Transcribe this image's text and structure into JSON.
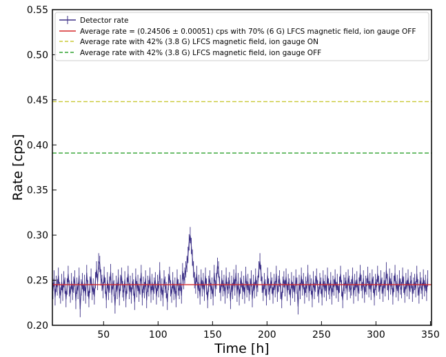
{
  "chart_data": {
    "type": "line",
    "xlabel": "Time [h]",
    "ylabel": "Rate [cps]",
    "xlim": [
      3,
      351
    ],
    "ylim": [
      0.2,
      0.55
    ],
    "xticks": [
      50,
      100,
      150,
      200,
      250,
      300,
      350
    ],
    "xtick_labels": [
      "50",
      "100",
      "150",
      "200",
      "250",
      "300",
      "350"
    ],
    "yticks": [
      0.2,
      0.25,
      0.3,
      0.35,
      0.4,
      0.45,
      0.5,
      0.55
    ],
    "ytick_labels": [
      "0.20",
      "0.25",
      "0.30",
      "0.35",
      "0.40",
      "0.45",
      "0.50",
      "0.55"
    ],
    "grid": false,
    "legend_position": "top-left",
    "colors": {
      "detector": "#3b2f86",
      "avg_70": "#d62728",
      "avg_42_on": "#c8c832",
      "avg_42_off": "#2ca02c"
    },
    "series": [
      {
        "name": "Detector rate",
        "kind": "errorbar",
        "x_start": 3.5,
        "x_step": 1.0,
        "error": 0.009,
        "values": [
          0.238,
          0.252,
          0.231,
          0.246,
          0.242,
          0.255,
          0.239,
          0.233,
          0.248,
          0.236,
          0.251,
          0.244,
          0.229,
          0.243,
          0.257,
          0.241,
          0.234,
          0.249,
          0.237,
          0.245,
          0.252,
          0.227,
          0.244,
          0.238,
          0.255,
          0.218,
          0.242,
          0.249,
          0.236,
          0.247,
          0.233,
          0.258,
          0.241,
          0.229,
          0.245,
          0.254,
          0.237,
          0.243,
          0.232,
          0.25,
          0.262,
          0.248,
          0.271,
          0.268,
          0.253,
          0.247,
          0.239,
          0.256,
          0.244,
          0.228,
          0.25,
          0.237,
          0.245,
          0.259,
          0.234,
          0.249,
          0.241,
          0.222,
          0.246,
          0.238,
          0.253,
          0.231,
          0.247,
          0.255,
          0.24,
          0.236,
          0.251,
          0.229,
          0.244,
          0.257,
          0.238,
          0.246,
          0.233,
          0.249,
          0.242,
          0.226,
          0.254,
          0.24,
          0.247,
          0.235,
          0.243,
          0.258,
          0.231,
          0.245,
          0.239,
          0.252,
          0.228,
          0.246,
          0.241,
          0.255,
          0.234,
          0.248,
          0.237,
          0.244,
          0.25,
          0.232,
          0.247,
          0.24,
          0.261,
          0.236,
          0.243,
          0.23,
          0.252,
          0.245,
          0.239,
          0.226,
          0.248,
          0.256,
          0.241,
          0.234,
          0.25,
          0.237,
          0.244,
          0.229,
          0.253,
          0.242,
          0.238,
          0.247,
          0.233,
          0.26,
          0.249,
          0.255,
          0.262,
          0.268,
          0.278,
          0.292,
          0.3,
          0.288,
          0.275,
          0.262,
          0.25,
          0.244,
          0.257,
          0.239,
          0.247,
          0.232,
          0.253,
          0.241,
          0.249,
          0.236,
          0.255,
          0.243,
          0.228,
          0.246,
          0.252,
          0.238,
          0.244,
          0.231,
          0.258,
          0.241,
          0.249,
          0.266,
          0.262,
          0.245,
          0.236,
          0.252,
          0.241,
          0.247,
          0.233,
          0.255,
          0.239,
          0.244,
          0.25,
          0.227,
          0.246,
          0.238,
          0.253,
          0.242,
          0.258,
          0.235,
          0.249,
          0.231,
          0.244,
          0.251,
          0.238,
          0.246,
          0.233,
          0.256,
          0.24,
          0.248,
          0.236,
          0.243,
          0.252,
          0.229,
          0.247,
          0.239,
          0.254,
          0.241,
          0.246,
          0.262,
          0.271,
          0.258,
          0.245,
          0.236,
          0.249,
          0.242,
          0.231,
          0.255,
          0.243,
          0.237,
          0.25,
          0.244,
          0.233,
          0.248,
          0.24,
          0.257,
          0.235,
          0.246,
          0.252,
          0.238,
          0.228,
          0.245,
          0.251,
          0.241,
          0.254,
          0.236,
          0.248,
          0.243,
          0.231,
          0.25,
          0.239,
          0.246,
          0.235,
          0.253,
          0.244,
          0.221,
          0.247,
          0.238,
          0.255,
          0.242,
          0.249,
          0.233,
          0.245,
          0.24,
          0.258,
          0.236,
          0.247,
          0.243,
          0.229,
          0.251,
          0.238,
          0.246,
          0.254,
          0.241,
          0.234,
          0.249,
          0.244,
          0.231,
          0.252,
          0.24,
          0.247,
          0.236,
          0.255,
          0.243,
          0.238,
          0.25,
          0.232,
          0.246,
          0.242,
          0.253,
          0.239,
          0.248,
          0.235,
          0.245,
          0.257,
          0.241,
          0.228,
          0.247,
          0.244,
          0.25,
          0.237,
          0.253,
          0.246,
          0.239,
          0.242,
          0.255,
          0.233,
          0.248,
          0.241,
          0.251,
          0.236,
          0.244,
          0.258,
          0.247,
          0.239,
          0.252,
          0.234,
          0.246,
          0.243,
          0.256,
          0.24,
          0.249,
          0.237,
          0.253,
          0.245,
          0.231,
          0.248,
          0.242,
          0.257,
          0.246,
          0.238,
          0.252,
          0.244,
          0.235,
          0.25,
          0.241,
          0.261,
          0.248,
          0.237,
          0.254,
          0.243,
          0.249,
          0.232,
          0.246,
          0.258,
          0.24,
          0.247,
          0.236,
          0.252,
          0.243,
          0.239,
          0.255,
          0.245,
          0.234,
          0.249,
          0.241,
          0.253,
          0.238,
          0.246,
          0.25,
          0.235,
          0.244,
          0.248,
          0.24,
          0.257,
          0.242,
          0.233,
          0.25,
          0.244,
          0.238,
          0.253,
          0.241,
          0.247,
          0.236,
          0.252
        ]
      },
      {
        "name": "Average rate = (0.24506 ± 0.00051) cps with 70% (6 G) LFCS magnetic field, ion gauge OFF",
        "kind": "hline",
        "style": "solid",
        "value": 0.24506
      },
      {
        "name": "Average rate with 42% (3.8 G) LFCS magnetic field, ion gauge ON",
        "kind": "hline",
        "style": "dashed",
        "value": 0.448
      },
      {
        "name": "Average rate with 42% (3.8 G) LFCS magnetic field, ion gauge OFF",
        "kind": "hline",
        "style": "dashed",
        "value": 0.391
      }
    ]
  }
}
